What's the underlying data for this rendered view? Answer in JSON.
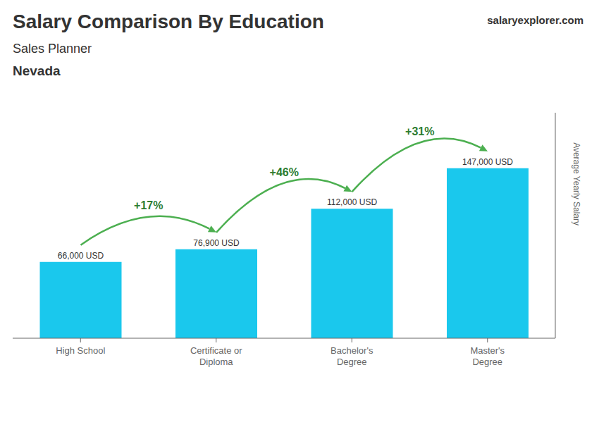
{
  "chart_data": {
    "type": "bar",
    "title": "Salary Comparison By Education",
    "subtitle": "Sales Planner",
    "ylabel": "Average Yearly Salary",
    "categories": [
      "High School",
      "Certificate or\nDiploma",
      "Bachelor's\nDegree",
      "Master's\nDegree"
    ],
    "values": [
      66000,
      76900,
      112000,
      147000
    ],
    "value_labels": [
      "66,000 USD",
      "76,900 USD",
      "112,000 USD",
      "147,000 USD"
    ],
    "data_labels": true,
    "color": "#1ac8ed",
    "ylim": [
      0,
      195000
    ],
    "tick_labels": "x",
    "grid": false,
    "annotations": [
      {
        "text": "Nevada"
      },
      {
        "text": "salaryexplorer.com"
      },
      {
        "text": "+17%",
        "from": "High School",
        "to": "Certificate or\nDiploma"
      },
      {
        "text": "+46%",
        "from": "Certificate or\nDiploma",
        "to": "Bachelor's\nDegree"
      },
      {
        "text": "+31%",
        "from": "Bachelor's\nDegree",
        "to": "Master's\nDegree"
      }
    ]
  }
}
